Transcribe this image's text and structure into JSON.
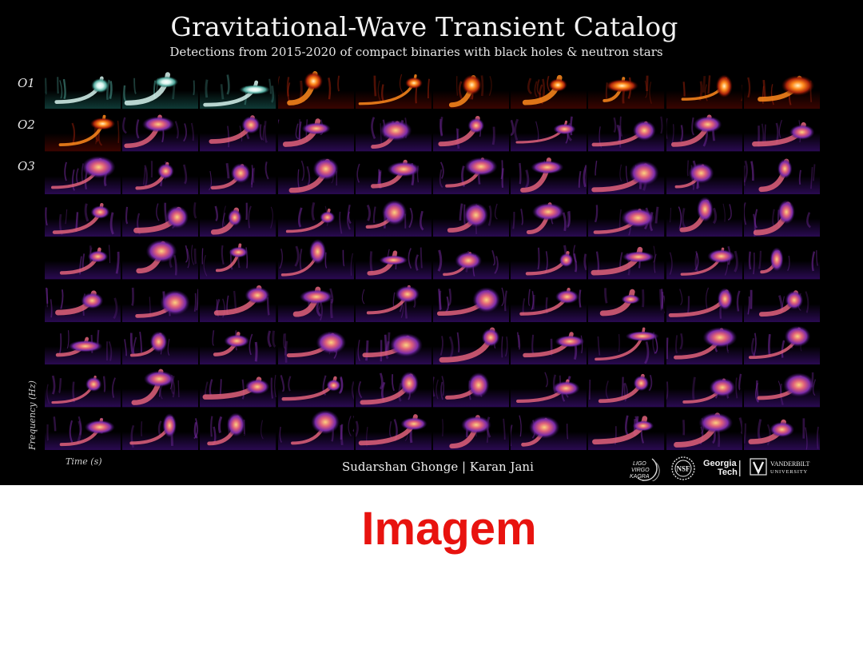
{
  "poster": {
    "title": "Gravitational-Wave Transient Catalog",
    "subtitle": "Detections from 2015-2020 of compact binaries with black holes & neutron stars",
    "run_labels": [
      "O1",
      "O2",
      "O3"
    ],
    "y_axis_label": "Frequency (Hz)",
    "x_axis_label": "Time (s)",
    "authors": "Sudarshan Ghonge | Karan Jani",
    "logos": [
      {
        "name": "ligo-virgo-kagra",
        "text": "LIGO VIRGO KAGRA"
      },
      {
        "name": "nsf",
        "text": "NSF"
      },
      {
        "name": "georgia-tech",
        "text": "Georgia Tech"
      },
      {
        "name": "vanderbilt",
        "text": "VANDERBILT UNIVERSITY"
      }
    ],
    "grid": {
      "rows": 9,
      "cols": 10
    },
    "colormaps": {
      "teal": [
        "#000000",
        "#0f3b37",
        "#4fa69a",
        "#d7f4ee",
        "#ffffff"
      ],
      "hot": [
        "#000000",
        "#3a0400",
        "#a8220a",
        "#ff8a1c",
        "#fff3c4"
      ],
      "inferno": [
        "#000000",
        "#2a0a52",
        "#7b2ba8",
        "#e0617a",
        "#fcd27e"
      ]
    }
  },
  "caption": "Imagem"
}
